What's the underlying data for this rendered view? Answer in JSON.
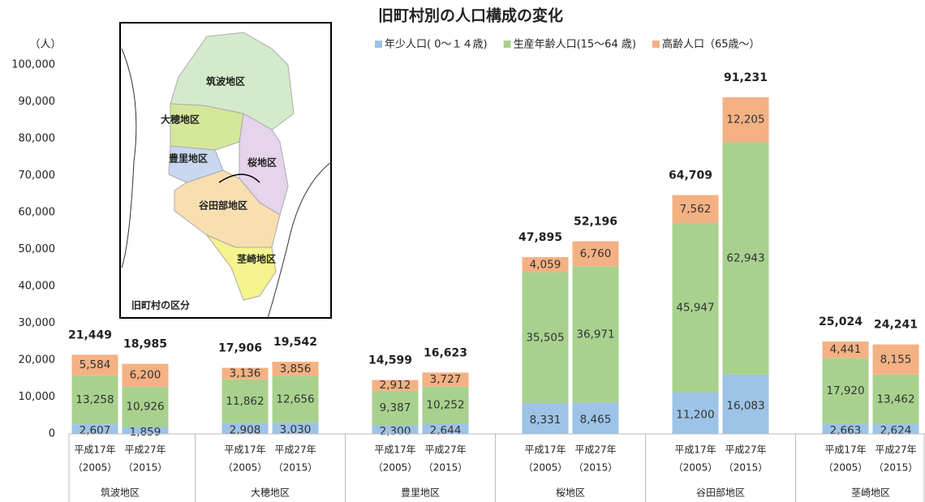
{
  "chart_data": {
    "type": "stacked-bar",
    "title": "旧町村別の人口構成の変化",
    "y_unit": "（人）",
    "ylim": [
      0,
      100000
    ],
    "yticks": [
      0,
      {
        "value": 10000,
        "label": "10,000"
      },
      {
        "value": 20000,
        "label": "20,000"
      },
      {
        "value": 30000,
        "label": "30,000"
      },
      {
        "value": 40000,
        "label": "40,000"
      },
      {
        "value": 50000,
        "label": "50,000"
      },
      {
        "value": 60000,
        "label": "60,000"
      },
      {
        "value": 70000,
        "label": "70,000"
      },
      {
        "value": 80000,
        "label": "80,000"
      },
      {
        "value": 90000,
        "label": "90,000"
      },
      {
        "value": 100000,
        "label": "100,000"
      }
    ],
    "groups": [
      "筑波地区",
      "大穂地区",
      "豊里地区",
      "桜地区",
      "谷田部地区",
      "茎崎地区"
    ],
    "categories": [
      [
        "平成17年",
        "（2005）"
      ],
      [
        "平成27年",
        "（2015）"
      ],
      [
        "平成17年",
        "（2005）"
      ],
      [
        "平成27年",
        "（2015）"
      ],
      [
        "平成17年",
        "（2005）"
      ],
      [
        "平成27年",
        "（2015）"
      ],
      [
        "平成17年",
        "（2005）"
      ],
      [
        "平成27年",
        "（2015）"
      ],
      [
        "平成17年",
        "（2005）"
      ],
      [
        "平成27年",
        "（2015）"
      ],
      [
        "平成17年",
        "（2005）"
      ],
      [
        "平成27年",
        "（2015）"
      ]
    ],
    "series": [
      {
        "name": "年少人口( 0～１４歳)",
        "color": "#9dc3e6",
        "values": [
          2607,
          1859,
          2908,
          3030,
          2300,
          2644,
          8331,
          8465,
          11200,
          16083,
          2663,
          2624
        ],
        "value_labels": [
          "2,607",
          "1,859",
          "2,908",
          "3,030",
          "2,300",
          "2,644",
          "8,331",
          "8,465",
          "11,200",
          "16,083",
          "2,663",
          "2,624"
        ]
      },
      {
        "name": "生産年齢人口(15～64 歳)",
        "color": "#a9d18e",
        "values": [
          13258,
          10926,
          11862,
          12656,
          9387,
          10252,
          35505,
          36971,
          45947,
          62943,
          17920,
          13462
        ],
        "value_labels": [
          "13,258",
          "10,926",
          "11,862",
          "12,656",
          "9,387",
          "10,252",
          "35,505",
          "36,971",
          "45,947",
          "62,943",
          "17,920",
          "13,462"
        ]
      },
      {
        "name": "高齢人口（65歳～）",
        "color": "#f4b183",
        "values": [
          5584,
          6200,
          3136,
          3856,
          2912,
          3727,
          4059,
          6760,
          7562,
          12205,
          4441,
          8155
        ],
        "value_labels": [
          "5,584",
          "6,200",
          "3,136",
          "3,856",
          "2,912",
          "3,727",
          "4,059",
          "6,760",
          "7,562",
          "12,205",
          "4,441",
          "8,155"
        ]
      }
    ],
    "totals": {
      "values": [
        21449,
        18985,
        17906,
        19542,
        14599,
        16623,
        47895,
        52196,
        64709,
        91231,
        25024,
        24241
      ],
      "value_labels": [
        "21,449",
        "18,985",
        "17,906",
        "19,542",
        "14,599",
        "16,623",
        "47,895",
        "52,196",
        "64,709",
        "91,231",
        "25,024",
        "24,241"
      ]
    }
  },
  "map": {
    "caption": "旧町村の区分",
    "labels": [
      "筑波地区",
      "大穂地区",
      "豊里地区",
      "桜地区",
      "谷田部地区",
      "茎崎地区"
    ]
  }
}
